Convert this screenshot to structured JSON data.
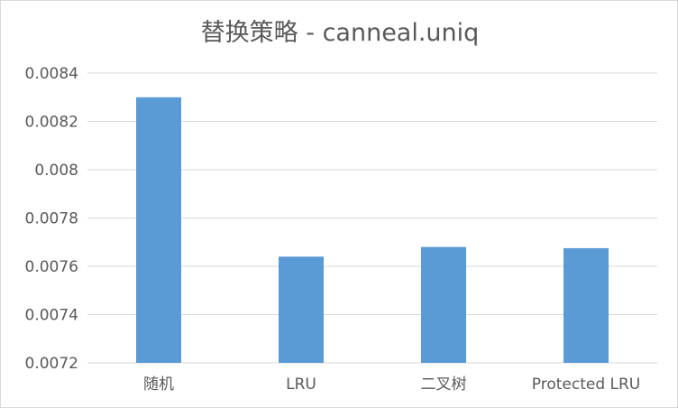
{
  "chart_data": {
    "type": "bar",
    "title": "替换策略 - canneal.uniq",
    "xlabel": "",
    "ylabel": "",
    "categories": [
      "随机",
      "LRU",
      "二叉树",
      "Protected LRU"
    ],
    "values": [
      0.0083,
      0.00764,
      0.00768,
      0.007675
    ],
    "ylim": [
      0.0072,
      0.0084
    ],
    "yticks": [
      0.0072,
      0.0074,
      0.0076,
      0.0078,
      0.008,
      0.0082,
      0.0084
    ],
    "ytick_labels": [
      "0.0072",
      "0.0074",
      "0.0076",
      "0.0078",
      "0.008",
      "0.0082",
      "0.0084"
    ],
    "grid": true,
    "legend": "none",
    "colors": {
      "bar": "#5b9bd5",
      "grid": "#d9d9d9",
      "text": "#595959"
    }
  }
}
